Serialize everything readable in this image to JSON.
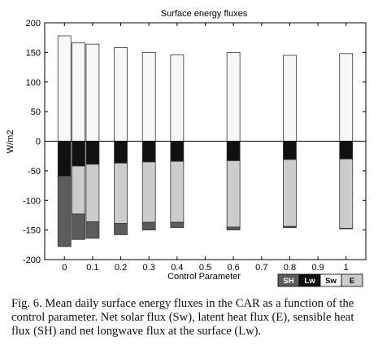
{
  "chart_data": {
    "type": "bar",
    "stacked": true,
    "title": "Surface energy fluxes",
    "xlabel": "Control Parameter",
    "ylabel": "W/m2",
    "xlim": [
      -0.07,
      1.07
    ],
    "ylim": [
      -200,
      200
    ],
    "xticks": [
      "0",
      "0.1",
      "0.2",
      "0.3",
      "0.4",
      "0.5",
      "0.6",
      "0.7",
      "0.8",
      "0.9",
      "1"
    ],
    "yticks": [
      "200",
      "150",
      "100",
      "50",
      "0",
      "-50",
      "-100",
      "-150",
      "-200"
    ],
    "x": [
      0,
      0.05,
      0.1,
      0.2,
      0.3,
      0.4,
      0.6,
      0.8,
      1.0
    ],
    "legend_position": "bottom-right",
    "series": [
      {
        "name": "SH",
        "color": "#5c5c5c",
        "values": [
          -119,
          -43,
          -28,
          -19,
          -13,
          -9,
          -5,
          -2,
          -1
        ]
      },
      {
        "name": "Lw",
        "color": "#111111",
        "values": [
          -59,
          -42,
          -39,
          -37,
          -35,
          -34,
          -33,
          -31,
          -30
        ]
      },
      {
        "name": "Sw",
        "color": "#f7f7f7",
        "values": [
          178,
          166,
          164,
          158,
          150,
          146,
          150,
          145,
          148
        ]
      },
      {
        "name": "E",
        "color": "#cccccc",
        "values": [
          0,
          -81,
          -97,
          -102,
          -102,
          -103,
          -112,
          -113,
          -117
        ]
      }
    ]
  },
  "caption": "Fig. 6. Mean daily surface energy fluxes in the CAR as a function of the control parameter. Net solar flux (Sw), latent heat flux (E), sensible heat flux (SH) and net longwave flux at the surface (Lw)."
}
